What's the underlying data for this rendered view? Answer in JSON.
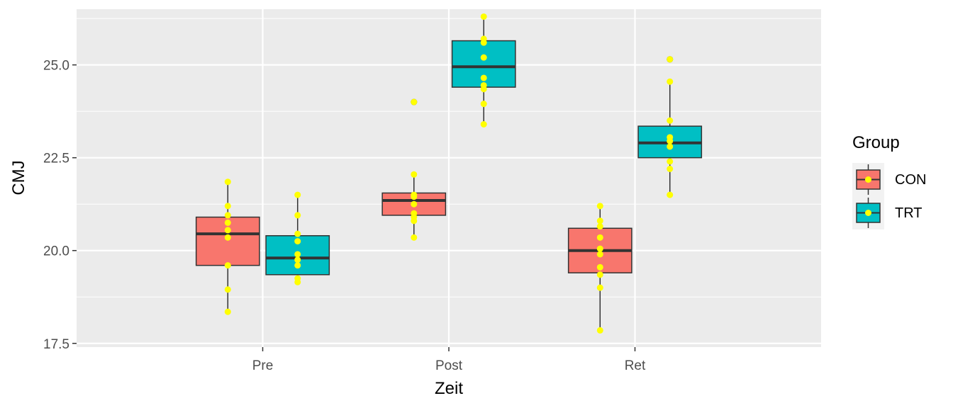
{
  "chart_data": {
    "type": "boxplot",
    "xlabel": "Zeit",
    "ylabel": "CMJ",
    "categories": [
      "Pre",
      "Post",
      "Ret"
    ],
    "ylim": [
      17.4,
      26.5
    ],
    "yticks": [
      17.5,
      20.0,
      22.5,
      25.0
    ],
    "ytick_labels": [
      "17.5",
      "20.0",
      "22.5",
      "25.0"
    ],
    "grid": true,
    "legend": {
      "title": "Group",
      "position": "right"
    },
    "point_color": "#ffff00",
    "outlier_color": "#333333",
    "series": [
      {
        "name": "CON",
        "color": "#F8766D",
        "boxes": [
          {
            "category": "Pre",
            "q1": 19.6,
            "median": 20.45,
            "q3": 20.9,
            "whisker_low": 18.35,
            "whisker_high": 21.85,
            "outliers": [],
            "points": [
              21.85,
              21.2,
              20.95,
              20.75,
              20.55,
              20.35,
              19.6,
              18.95,
              18.35
            ]
          },
          {
            "category": "Post",
            "q1": 20.95,
            "median": 21.35,
            "q3": 21.55,
            "whisker_low": 20.35,
            "whisker_high": 22.05,
            "outliers": [
              24.0
            ],
            "points": [
              24.0,
              22.05,
              21.5,
              21.45,
              21.25,
              21.0,
              20.9,
              20.8,
              20.35
            ]
          },
          {
            "category": "Ret",
            "q1": 19.4,
            "median": 20.0,
            "q3": 20.6,
            "whisker_low": 17.85,
            "whisker_high": 21.2,
            "outliers": [],
            "points": [
              21.2,
              20.8,
              20.65,
              20.35,
              20.05,
              19.9,
              19.55,
              19.35,
              19.0,
              17.85
            ]
          }
        ]
      },
      {
        "name": "TRT",
        "color": "#00BFC4",
        "boxes": [
          {
            "category": "Pre",
            "q1": 19.35,
            "median": 19.8,
            "q3": 20.4,
            "whisker_low": 19.15,
            "whisker_high": 21.5,
            "outliers": [],
            "points": [
              21.5,
              20.95,
              20.45,
              20.25,
              19.9,
              19.75,
              19.6,
              19.25,
              19.15
            ]
          },
          {
            "category": "Post",
            "q1": 24.4,
            "median": 24.95,
            "q3": 25.65,
            "whisker_low": 23.4,
            "whisker_high": 26.3,
            "outliers": [],
            "points": [
              26.3,
              25.7,
              25.6,
              25.2,
              24.65,
              24.45,
              24.35,
              23.95,
              23.4
            ]
          },
          {
            "category": "Ret",
            "q1": 22.5,
            "median": 22.9,
            "q3": 23.35,
            "whisker_low": 21.5,
            "whisker_high": 24.55,
            "outliers": [
              25.15
            ],
            "points": [
              25.15,
              24.55,
              23.5,
              23.05,
              22.95,
              22.8,
              22.4,
              22.2,
              21.5
            ]
          }
        ]
      }
    ]
  }
}
